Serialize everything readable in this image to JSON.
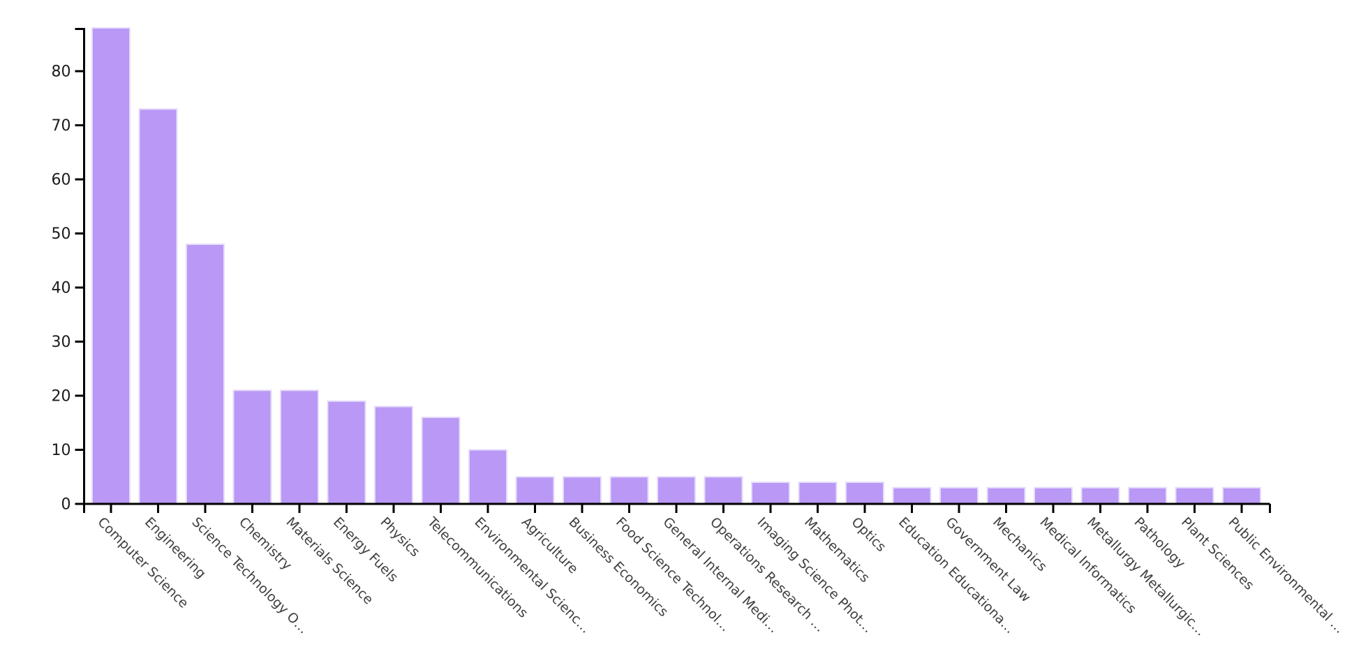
{
  "chart_data": {
    "type": "bar",
    "categories": [
      "Computer Science",
      "Engineering",
      "Science Technology O…",
      "Chemistry",
      "Materials Science",
      "Energy Fuels",
      "Physics",
      "Telecommunications",
      "Environmental Scienc…",
      "Agriculture",
      "Business Economics",
      "Food Science Technol…",
      "General Internal Medi…",
      "Operations Research …",
      "Imaging Science Phot…",
      "Mathematics",
      "Optics",
      "Education Educationa…",
      "Government Law",
      "Mechanics",
      "Medical Informatics",
      "Metallurgy Metallurgic…",
      "Pathology",
      "Plant Sciences",
      "Public Environmental …"
    ],
    "values": [
      88,
      73,
      48,
      21,
      21,
      19,
      18,
      16,
      10,
      5,
      5,
      5,
      5,
      5,
      4,
      4,
      4,
      3,
      3,
      3,
      3,
      3,
      3,
      3,
      3
    ],
    "title": "",
    "xlabel": "",
    "ylabel": "",
    "ylim": [
      0,
      88
    ],
    "y_ticks": [
      0,
      10,
      20,
      30,
      40,
      50,
      60,
      70,
      80
    ],
    "x_label_rotation_deg": 45,
    "grid": false,
    "legend": null,
    "bar_color": "#b998f6",
    "bar_edge_color": "#e6dcfa",
    "axis_color": "#000000",
    "y_label_color": "#1c1c1c",
    "x_label_color": "#3f3f3f"
  }
}
